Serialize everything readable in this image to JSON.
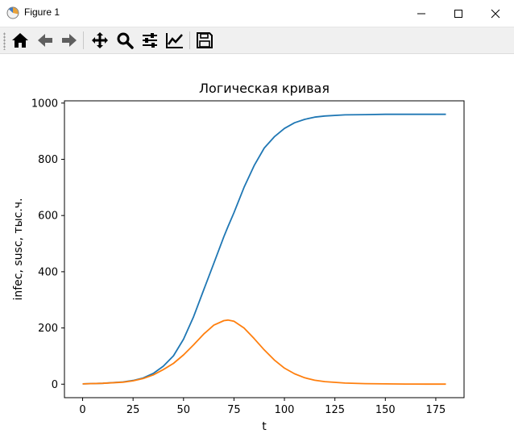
{
  "window": {
    "title": "Figure 1"
  },
  "toolbar": {
    "buttons": [
      {
        "id": "home",
        "icon": "home-icon"
      },
      {
        "id": "back",
        "icon": "arrow-left-icon"
      },
      {
        "id": "forward",
        "icon": "arrow-right-icon"
      },
      {
        "id": "pan",
        "icon": "move-icon"
      },
      {
        "id": "zoom",
        "icon": "magnifier-icon"
      },
      {
        "id": "configure",
        "icon": "sliders-icon"
      },
      {
        "id": "edit",
        "icon": "line-chart-icon"
      },
      {
        "id": "save",
        "icon": "floppy-disk-icon"
      }
    ]
  },
  "chart_data": {
    "type": "line",
    "title": "Логическая кривая",
    "xlabel": "t",
    "ylabel": "infec, susc, тыс.ч.",
    "xlim": [
      -9,
      189
    ],
    "ylim": [
      -48,
      1008
    ],
    "xticks": [
      0,
      25,
      50,
      75,
      100,
      125,
      150,
      175
    ],
    "yticks": [
      0,
      200,
      400,
      600,
      800,
      1000
    ],
    "grid": false,
    "series": [
      {
        "color": "#1f77b4",
        "x": [
          0,
          10,
          20,
          25,
          30,
          35,
          40,
          45,
          50,
          55,
          60,
          65,
          70,
          72,
          75,
          80,
          85,
          90,
          95,
          100,
          105,
          110,
          115,
          120,
          130,
          140,
          150,
          160,
          170,
          180
        ],
        "y": [
          1,
          3,
          8,
          13,
          22,
          38,
          64,
          101,
          160,
          240,
          335,
          430,
          525,
          560,
          610,
          700,
          778,
          840,
          880,
          910,
          930,
          942,
          950,
          954,
          958,
          959,
          960,
          960,
          960,
          960
        ]
      },
      {
        "color": "#ff7f0e",
        "x": [
          0,
          10,
          20,
          25,
          30,
          35,
          40,
          45,
          50,
          55,
          60,
          65,
          70,
          72,
          75,
          80,
          85,
          90,
          95,
          100,
          105,
          110,
          115,
          120,
          130,
          140,
          150,
          160,
          170,
          180
        ],
        "y": [
          1,
          3,
          7,
          12,
          20,
          33,
          52,
          74,
          104,
          140,
          178,
          210,
          226,
          228,
          224,
          200,
          162,
          122,
          86,
          57,
          37,
          23,
          14,
          9,
          4,
          2,
          1,
          0.5,
          0.3,
          0.2
        ]
      }
    ]
  }
}
